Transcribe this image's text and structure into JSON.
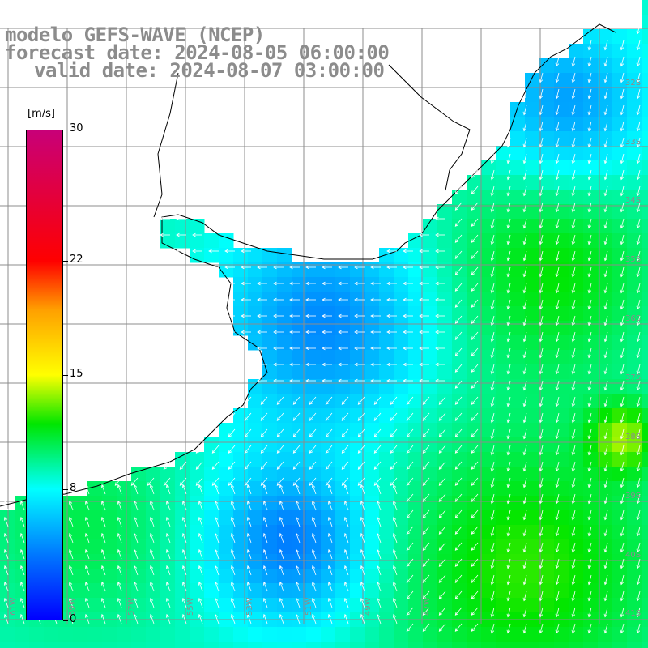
{
  "titles": {
    "line1": "modelo GEFS-WAVE (NCEP)",
    "line2": "forecast date: 2024-08-05 06:00:00",
    "line3": "valid date: 2024-08-07 03:00:00"
  },
  "legend": {
    "unit": "[m/s]",
    "ticks": [
      {
        "value": 30,
        "label": "30"
      },
      {
        "value": 22,
        "label": "22"
      },
      {
        "value": 15,
        "label": "15"
      },
      {
        "value": 8,
        "label": "8"
      },
      {
        "value": 0,
        "label": "0"
      }
    ],
    "range": [
      0,
      30
    ]
  },
  "map_labels": {
    "lon_labels": [
      "61W",
      "59W",
      "57W",
      "55W",
      "53W",
      "51W",
      "49W",
      "47W"
    ],
    "lat_labels": [
      "32S",
      "33S",
      "34S",
      "35S",
      "36S",
      "37S",
      "38S",
      "39S",
      "40S",
      "41S"
    ]
  },
  "colors": {
    "grid": "#8c8c8c",
    "coast": "#000000",
    "arrows": "#ffffff",
    "title": "#8c8c8c"
  },
  "field": {
    "description_of_values": "wind speed in m/s",
    "bbox_lonlat": [
      -62,
      -31,
      -45,
      -42
    ],
    "min_observed": 3,
    "max_observed": 13
  }
}
